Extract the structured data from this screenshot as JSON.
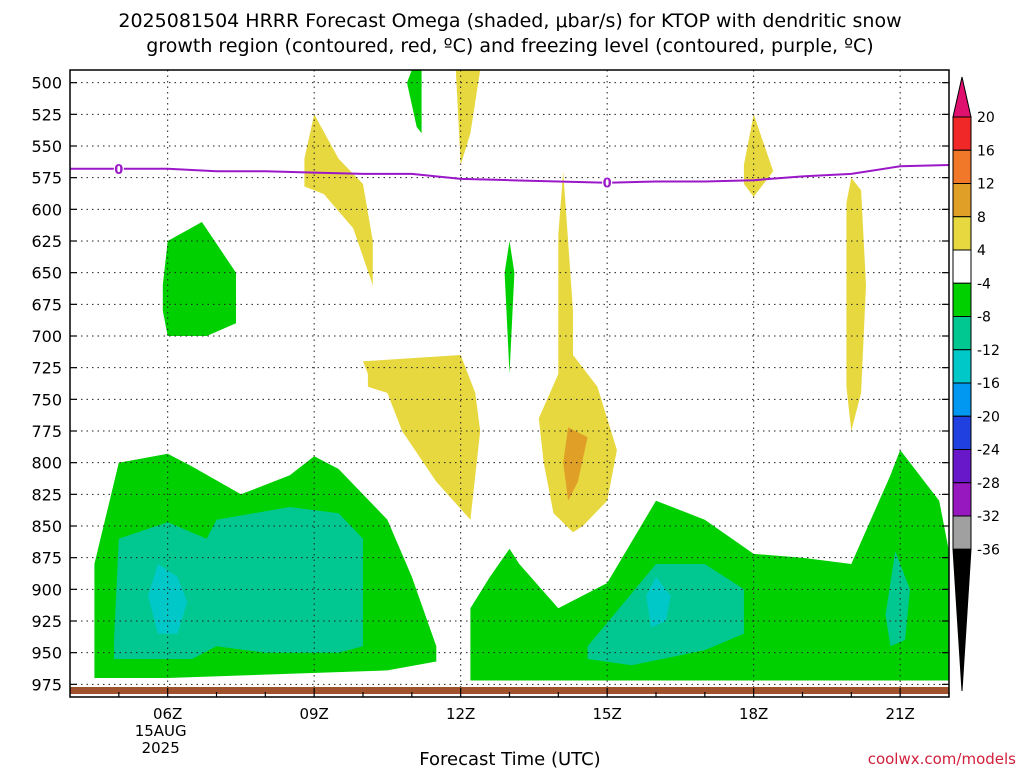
{
  "chart_data": {
    "type": "heatmap",
    "title_line1": "2025081504 HRRR Forecast Omega (shaded, μbar/s) for KTOP with dendritic snow",
    "title_line2": "growth region (contoured, red, ºC) and freezing level (contoured, purple, ºC)",
    "xlabel": "Forecast Time (UTC)",
    "credit": "coolwx.com/models",
    "x_ticks": [
      {
        "label": "06Z",
        "hour": 6,
        "sub1": "15AUG",
        "sub2": "2025"
      },
      {
        "label": "09Z",
        "hour": 9
      },
      {
        "label": "12Z",
        "hour": 12
      },
      {
        "label": "15Z",
        "hour": 15
      },
      {
        "label": "18Z",
        "hour": 18
      },
      {
        "label": "21Z",
        "hour": 21
      }
    ],
    "x_range_hours": [
      4,
      22
    ],
    "y_ticks": [
      "500",
      "525",
      "550",
      "575",
      "600",
      "625",
      "650",
      "675",
      "700",
      "725",
      "750",
      "775",
      "800",
      "825",
      "850",
      "875",
      "900",
      "925",
      "950",
      "975"
    ],
    "y_range_hpa": [
      490,
      985
    ],
    "colorbar": {
      "labels": [
        "20",
        "16",
        "12",
        "8",
        "4",
        "-4",
        "-8",
        "-12",
        "-16",
        "-20",
        "-24",
        "-28",
        "-32",
        "-36"
      ],
      "colors": [
        "#e0106e",
        "#f02828",
        "#f07828",
        "#e0a028",
        "#e8d840",
        "#ffffff",
        "#00d000",
        "#00c890",
        "#00c8c8",
        "#0098f0",
        "#2040e0",
        "#6818c8",
        "#9818c0",
        "#a0a0a0",
        "#000000"
      ]
    },
    "freezing_level": {
      "label": "0",
      "label_hours": [
        5,
        15
      ],
      "points": [
        [
          4,
          568
        ],
        [
          5,
          568
        ],
        [
          6,
          568
        ],
        [
          7,
          570
        ],
        [
          8,
          570
        ],
        [
          9,
          571
        ],
        [
          10,
          572
        ],
        [
          11,
          572
        ],
        [
          12,
          576
        ],
        [
          13,
          577
        ],
        [
          14,
          578
        ],
        [
          15,
          579
        ],
        [
          16,
          578
        ],
        [
          17,
          578
        ],
        [
          18,
          577
        ],
        [
          19,
          574
        ],
        [
          20,
          572
        ],
        [
          21,
          566
        ],
        [
          22,
          565
        ]
      ]
    },
    "omega_regions": [
      {
        "level": -4,
        "points": [
          [
            4.5,
            960
          ],
          [
            4.5,
            880
          ],
          [
            5,
            800
          ],
          [
            6,
            793
          ],
          [
            6.5,
            803
          ],
          [
            7.5,
            825
          ],
          [
            8.5,
            810
          ],
          [
            9,
            795
          ],
          [
            9.5,
            805
          ],
          [
            10.5,
            845
          ],
          [
            11,
            890
          ],
          [
            11.5,
            945
          ],
          [
            11.5,
            957
          ],
          [
            10.5,
            964
          ],
          [
            6,
            970
          ],
          [
            4.5,
            970
          ]
        ]
      },
      {
        "level": -4,
        "points": [
          [
            12.2,
            960
          ],
          [
            12.2,
            915
          ],
          [
            12.6,
            890
          ],
          [
            13,
            868
          ],
          [
            13.2,
            880
          ],
          [
            14,
            915
          ],
          [
            15,
            895
          ],
          [
            16,
            830
          ],
          [
            17,
            845
          ],
          [
            18,
            872
          ],
          [
            19,
            875
          ],
          [
            20,
            880
          ],
          [
            20.8,
            810
          ],
          [
            21,
            790
          ],
          [
            21.8,
            830
          ],
          [
            22,
            870
          ],
          [
            22,
            972
          ],
          [
            12.2,
            972
          ]
        ]
      },
      {
        "level": -4,
        "points": [
          [
            5.9,
            660
          ],
          [
            6,
            625
          ],
          [
            6.7,
            610
          ],
          [
            7.4,
            650
          ],
          [
            7.4,
            690
          ],
          [
            6.8,
            700
          ],
          [
            6,
            700
          ],
          [
            5.9,
            680
          ]
        ]
      },
      {
        "level": -4,
        "points": [
          [
            10.9,
            500
          ],
          [
            11,
            490
          ],
          [
            11.2,
            490
          ],
          [
            11.2,
            540
          ],
          [
            11.1,
            535
          ]
        ]
      },
      {
        "level": -4,
        "points": [
          [
            12.9,
            650
          ],
          [
            13,
            625
          ],
          [
            13.1,
            650
          ],
          [
            13,
            730
          ]
        ]
      },
      {
        "level": -8,
        "points": [
          [
            4.9,
            940
          ],
          [
            5,
            860
          ],
          [
            6,
            847
          ],
          [
            6.8,
            860
          ],
          [
            7,
            845
          ],
          [
            8.5,
            835
          ],
          [
            9.5,
            840
          ],
          [
            10,
            860
          ],
          [
            10,
            945
          ],
          [
            9.5,
            950
          ],
          [
            8,
            950
          ],
          [
            7,
            945
          ],
          [
            6.5,
            955
          ],
          [
            4.9,
            955
          ]
        ]
      },
      {
        "level": -8,
        "points": [
          [
            14.6,
            945
          ],
          [
            16,
            880
          ],
          [
            17,
            880
          ],
          [
            17.8,
            900
          ],
          [
            17.8,
            935
          ],
          [
            17,
            948
          ],
          [
            15.5,
            960
          ],
          [
            14.6,
            955
          ]
        ]
      },
      {
        "level": -8,
        "points": [
          [
            20.7,
            920
          ],
          [
            20.9,
            870
          ],
          [
            21.2,
            900
          ],
          [
            21.1,
            940
          ],
          [
            20.8,
            945
          ]
        ]
      },
      {
        "level": -12,
        "points": [
          [
            5.6,
            905
          ],
          [
            5.8,
            880
          ],
          [
            6.2,
            890
          ],
          [
            6.4,
            910
          ],
          [
            6.2,
            935
          ],
          [
            5.8,
            935
          ]
        ]
      },
      {
        "level": -12,
        "points": [
          [
            15.8,
            905
          ],
          [
            16,
            890
          ],
          [
            16.3,
            905
          ],
          [
            16.2,
            925
          ],
          [
            15.9,
            930
          ]
        ]
      },
      {
        "level": 4,
        "points": [
          [
            8.8,
            560
          ],
          [
            9,
            525
          ],
          [
            9.5,
            560
          ],
          [
            10,
            580
          ],
          [
            10.2,
            625
          ],
          [
            10.2,
            660
          ],
          [
            9.8,
            615
          ],
          [
            9.2,
            588
          ],
          [
            8.8,
            582
          ]
        ]
      },
      {
        "level": 4,
        "points": [
          [
            11.9,
            490
          ],
          [
            12.4,
            490
          ],
          [
            12.2,
            540
          ],
          [
            12,
            565
          ]
        ]
      },
      {
        "level": 4,
        "points": [
          [
            10.1,
            730
          ],
          [
            10,
            720
          ],
          [
            12,
            715
          ],
          [
            12.3,
            745
          ],
          [
            12.4,
            775
          ],
          [
            12.2,
            845
          ],
          [
            11.5,
            815
          ],
          [
            10.8,
            775
          ],
          [
            10.5,
            745
          ],
          [
            10.1,
            740
          ]
        ]
      },
      {
        "level": 4,
        "points": [
          [
            13.7,
            800
          ],
          [
            13.6,
            765
          ],
          [
            14,
            730
          ],
          [
            14,
            620
          ],
          [
            14.1,
            570
          ],
          [
            14.3,
            680
          ],
          [
            14.3,
            715
          ],
          [
            14.8,
            740
          ],
          [
            15.2,
            790
          ],
          [
            15,
            830
          ],
          [
            14.5,
            850
          ],
          [
            14.3,
            855
          ],
          [
            13.9,
            840
          ]
        ]
      },
      {
        "level": 4,
        "points": [
          [
            17.8,
            565
          ],
          [
            18,
            525
          ],
          [
            18.4,
            570
          ],
          [
            18,
            590
          ],
          [
            17.8,
            580
          ]
        ]
      },
      {
        "level": 4,
        "points": [
          [
            19.9,
            595
          ],
          [
            20,
            575
          ],
          [
            20.2,
            585
          ],
          [
            20.3,
            660
          ],
          [
            20.2,
            745
          ],
          [
            20,
            775
          ],
          [
            19.9,
            740
          ]
        ]
      },
      {
        "level": 8,
        "points": [
          [
            14.1,
            800
          ],
          [
            14.2,
            772
          ],
          [
            14.6,
            780
          ],
          [
            14.4,
            815
          ],
          [
            14.2,
            830
          ]
        ]
      }
    ]
  }
}
